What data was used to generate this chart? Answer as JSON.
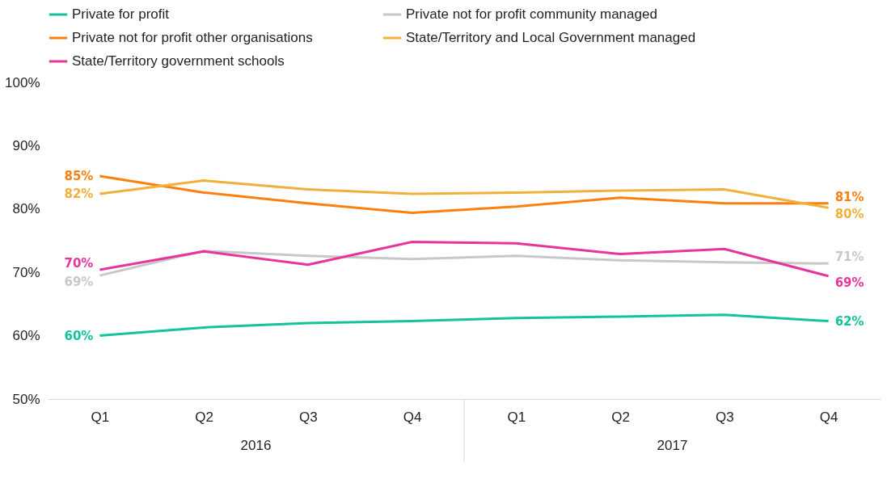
{
  "chart_data": {
    "type": "line",
    "categories": [
      "Q1",
      "Q2",
      "Q3",
      "Q4",
      "Q1",
      "Q2",
      "Q3",
      "Q4"
    ],
    "annotations": [
      "2016",
      "2017"
    ],
    "series": [
      {
        "name": "Private for profit",
        "color": "#14c39a",
        "values": [
          60.0,
          61.3,
          62.0,
          62.3,
          62.8,
          63.0,
          63.3,
          62.3
        ],
        "value_labels": [
          "60%",
          null,
          null,
          null,
          null,
          null,
          null,
          "62%"
        ]
      },
      {
        "name": "Private not for profit community managed",
        "color": "#c8c8c8",
        "values": [
          69.5,
          73.4,
          72.6,
          72.1,
          72.6,
          71.9,
          71.6,
          71.4
        ],
        "value_labels": [
          "69%",
          null,
          null,
          null,
          null,
          null,
          null,
          "71%"
        ]
      },
      {
        "name": "Private not for profit other organisations",
        "color": "#ff7f0e",
        "values": [
          85.2,
          82.6,
          80.9,
          79.4,
          80.4,
          81.8,
          80.9,
          80.9
        ],
        "value_labels": [
          "85%",
          null,
          null,
          null,
          null,
          null,
          null,
          "81%"
        ]
      },
      {
        "name": "State/Territory and Local Government managed",
        "color": "#f0b03a",
        "values": [
          82.4,
          84.5,
          83.1,
          82.4,
          82.6,
          82.9,
          83.1,
          80.2
        ],
        "value_labels": [
          "82%",
          null,
          null,
          null,
          null,
          null,
          null,
          "80%"
        ]
      },
      {
        "name": "State/Territory government schools",
        "color": "#e8359c",
        "values": [
          70.4,
          73.3,
          71.2,
          74.8,
          74.6,
          72.9,
          73.7,
          69.4
        ],
        "value_labels": [
          "70%",
          null,
          null,
          null,
          null,
          null,
          null,
          "69%"
        ]
      }
    ],
    "ylim": [
      50,
      100
    ],
    "yticks": [
      {
        "value": 50,
        "label": "50%"
      },
      {
        "value": 60,
        "label": "60%"
      },
      {
        "value": 70,
        "label": "70%"
      },
      {
        "value": 80,
        "label": "80%"
      },
      {
        "value": 90,
        "label": "90%"
      },
      {
        "value": 100,
        "label": "100%"
      }
    ],
    "legend": "top",
    "grid": false,
    "marker": "none",
    "line_style": "solid"
  }
}
